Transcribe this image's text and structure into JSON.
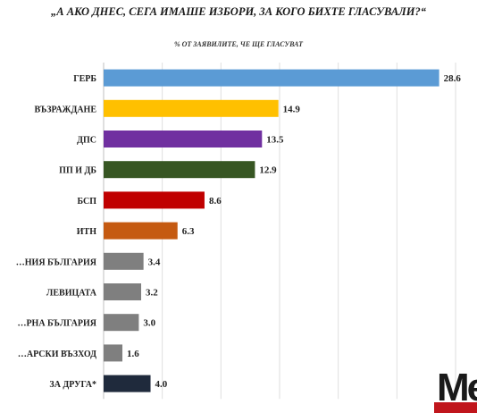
{
  "chart_data": {
    "type": "bar",
    "orientation": "horizontal",
    "title": "„А АКО ДНЕС, СЕГА ИМАШЕ ИЗБОРИ, ЗА КОГО БИХТЕ ГЛАСУВАЛИ?“",
    "subtitle": "% ОТ ЗАЯВИЛИТЕ, ЧЕ ЩЕ ГЛАСУВАТ",
    "categories": [
      "ГЕРБ",
      "ВЪЗРАЖДАНЕ",
      "ДПС",
      "ПП И ДБ",
      "БСП",
      "ИТН",
      "…НИЯ БЪЛГАРИЯ",
      "ЛЕВИЦАТА",
      "…РНА БЪЛГАРИЯ",
      "…АРСКИ ВЪЗХОД",
      "ЗА ДРУГА*"
    ],
    "values": [
      28.6,
      14.9,
      13.5,
      12.9,
      8.6,
      6.3,
      3.4,
      3.2,
      3.0,
      1.6,
      4.0
    ],
    "value_labels": [
      "28.6",
      "14.9",
      "13.5",
      "12.9",
      "8.6",
      "6.3",
      "3.4",
      "3.2",
      "3.0",
      "1.6",
      "4.0"
    ],
    "colors": [
      "#5b9bd5",
      "#ffc000",
      "#7030a0",
      "#375623",
      "#c00000",
      "#c55a11",
      "#7f7f7f",
      "#7f7f7f",
      "#7f7f7f",
      "#7f7f7f",
      "#1f2a3c"
    ],
    "xlim": [
      0,
      30
    ],
    "grid": true
  },
  "logo": {
    "text": "Me"
  }
}
